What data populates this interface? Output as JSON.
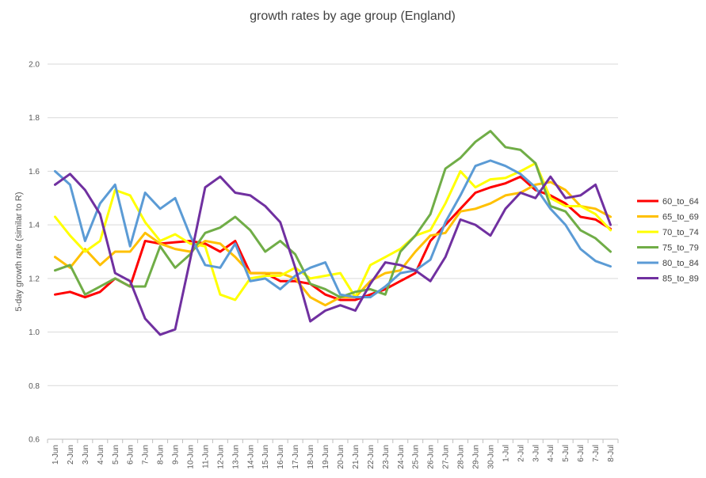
{
  "chart_data": {
    "type": "line",
    "title": "growth rates by age group (England)",
    "xlabel": "",
    "ylabel": "5-day growth rate (similar to R)",
    "ylim": [
      0.6,
      2.0
    ],
    "yticks": [
      "0.6",
      "0.8",
      "1.0",
      "1.2",
      "1.4",
      "1.6",
      "1.8",
      "2.0"
    ],
    "grid": "horizontal",
    "legend_position": "right",
    "categories": [
      "1-Jun",
      "2-Jun",
      "3-Jun",
      "4-Jun",
      "5-Jun",
      "6-Jun",
      "7-Jun",
      "8-Jun",
      "9-Jun",
      "10-Jun",
      "11-Jun",
      "12-Jun",
      "13-Jun",
      "14-Jun",
      "15-Jun",
      "16-Jun",
      "17-Jun",
      "18-Jun",
      "19-Jun",
      "20-Jun",
      "21-Jun",
      "22-Jun",
      "23-Jun",
      "24-Jun",
      "25-Jun",
      "26-Jun",
      "27-Jun",
      "28-Jun",
      "29-Jun",
      "30-Jun",
      "1-Jul",
      "2-Jul",
      "3-Jul",
      "4-Jul",
      "5-Jul",
      "6-Jul",
      "7-Jul",
      "8-Jul"
    ],
    "series": [
      {
        "name": "60_to_64",
        "color": "#ff0000",
        "values": [
          1.14,
          1.15,
          1.13,
          1.15,
          1.2,
          1.17,
          1.34,
          1.33,
          1.335,
          1.34,
          1.33,
          1.3,
          1.34,
          1.22,
          1.22,
          1.19,
          1.19,
          1.18,
          1.14,
          1.12,
          1.12,
          1.14,
          1.16,
          1.19,
          1.22,
          1.34,
          1.4,
          1.46,
          1.52,
          1.54,
          1.555,
          1.58,
          1.53,
          1.51,
          1.48,
          1.43,
          1.42,
          1.385
        ]
      },
      {
        "name": "65_to_69",
        "color": "#ffc000",
        "values": [
          1.28,
          1.24,
          1.31,
          1.25,
          1.3,
          1.3,
          1.37,
          1.33,
          1.31,
          1.3,
          1.34,
          1.33,
          1.28,
          1.22,
          1.22,
          1.22,
          1.2,
          1.13,
          1.1,
          1.13,
          1.13,
          1.19,
          1.22,
          1.23,
          1.3,
          1.36,
          1.37,
          1.45,
          1.46,
          1.48,
          1.51,
          1.52,
          1.55,
          1.56,
          1.53,
          1.47,
          1.46,
          1.43
        ]
      },
      {
        "name": "70_to_74",
        "color": "#ffff00",
        "values": [
          1.43,
          1.36,
          1.3,
          1.34,
          1.53,
          1.51,
          1.41,
          1.34,
          1.365,
          1.33,
          1.32,
          1.14,
          1.12,
          1.2,
          1.21,
          1.21,
          1.24,
          1.2,
          1.21,
          1.22,
          1.13,
          1.25,
          1.28,
          1.31,
          1.36,
          1.38,
          1.48,
          1.6,
          1.54,
          1.57,
          1.575,
          1.6,
          1.63,
          1.5,
          1.47,
          1.47,
          1.44,
          1.38
        ]
      },
      {
        "name": "75_to_79",
        "color": "#70ad47",
        "values": [
          1.23,
          1.25,
          1.14,
          1.17,
          1.2,
          1.17,
          1.17,
          1.32,
          1.24,
          1.29,
          1.37,
          1.39,
          1.43,
          1.38,
          1.3,
          1.34,
          1.29,
          1.18,
          1.16,
          1.13,
          1.15,
          1.16,
          1.14,
          1.3,
          1.36,
          1.44,
          1.61,
          1.65,
          1.71,
          1.75,
          1.69,
          1.68,
          1.63,
          1.47,
          1.45,
          1.38,
          1.35,
          1.3
        ]
      },
      {
        "name": "80_to_84",
        "color": "#5b9bd5",
        "values": [
          1.6,
          1.55,
          1.34,
          1.48,
          1.55,
          1.32,
          1.52,
          1.46,
          1.5,
          1.36,
          1.25,
          1.24,
          1.33,
          1.19,
          1.2,
          1.16,
          1.21,
          1.24,
          1.26,
          1.14,
          1.13,
          1.13,
          1.17,
          1.22,
          1.23,
          1.27,
          1.41,
          1.51,
          1.62,
          1.64,
          1.62,
          1.59,
          1.54,
          1.46,
          1.4,
          1.31,
          1.265,
          1.245
        ]
      },
      {
        "name": "85_to_89",
        "color": "#7030a0",
        "values": [
          1.55,
          1.59,
          1.53,
          1.44,
          1.22,
          1.19,
          1.05,
          0.99,
          1.01,
          1.27,
          1.54,
          1.58,
          1.52,
          1.51,
          1.47,
          1.41,
          1.24,
          1.04,
          1.08,
          1.1,
          1.08,
          1.18,
          1.26,
          1.25,
          1.23,
          1.19,
          1.28,
          1.42,
          1.4,
          1.36,
          1.46,
          1.52,
          1.5,
          1.58,
          1.5,
          1.51,
          1.55,
          1.4
        ]
      }
    ]
  }
}
